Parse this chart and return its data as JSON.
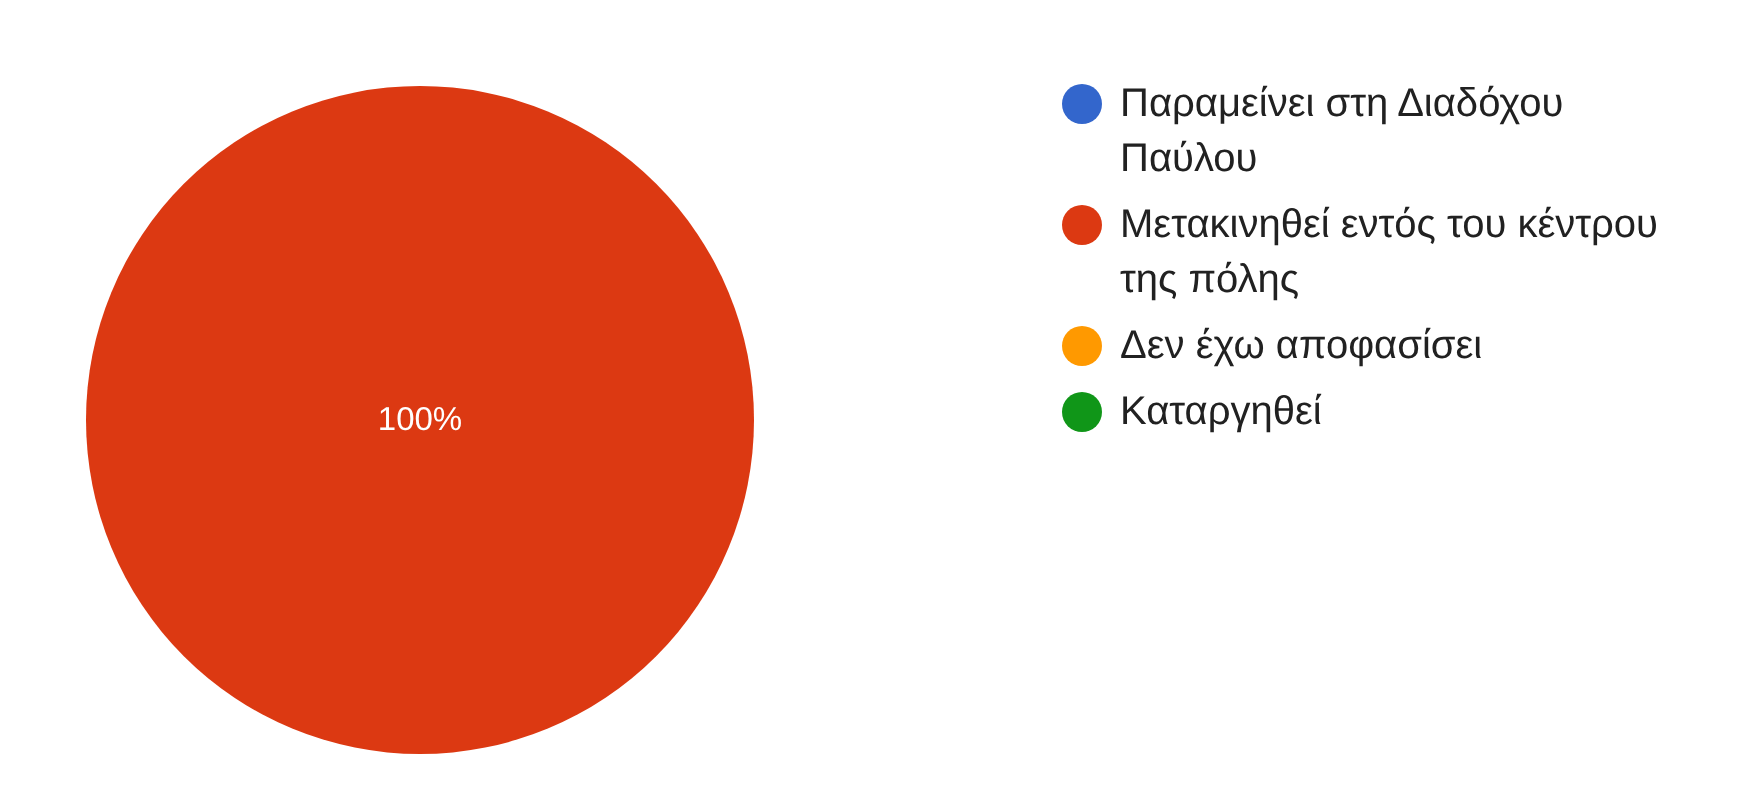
{
  "chart_data": {
    "type": "pie",
    "categories": [
      "Παραμείνει στη Διαδόχου Παύλου",
      "Μετακινηθεί εντός του κέντρου της πόλης",
      "Δεν έχω αποφασίσει",
      "Καταργηθεί"
    ],
    "values": [
      0,
      100,
      0,
      0
    ],
    "colors": [
      "#3366cc",
      "#dc3912",
      "#ff9900",
      "#109618"
    ],
    "value_labels": [
      null,
      "100%",
      null,
      null
    ],
    "legend": "right"
  }
}
